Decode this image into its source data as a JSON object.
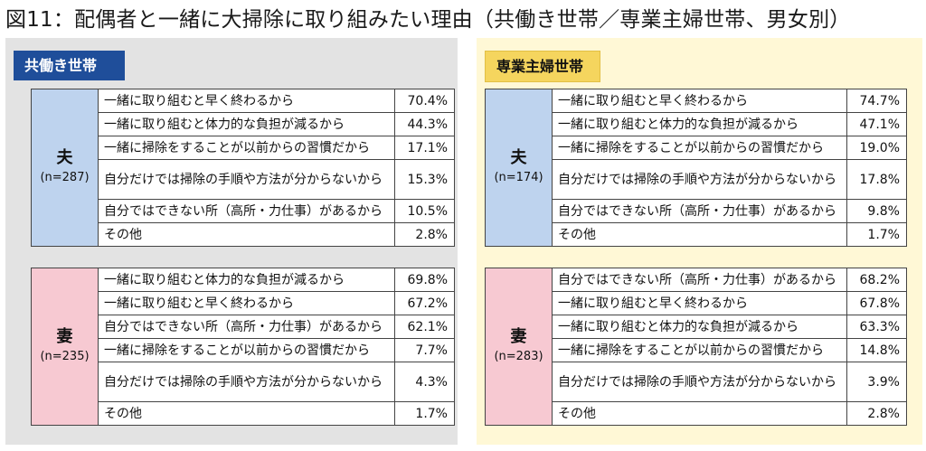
{
  "title": "図11：配偶者と一緒に大掃除に取り組みたい理由（共働き世帯／専業主婦世帯、男女別）",
  "colors": {
    "husband_cell": "#bed3ee",
    "wife_cell": "#f7c9d2",
    "left_header": "#1f4e9a",
    "right_header": "#f5d55e"
  },
  "panels": {
    "left": {
      "header": "共働き世帯",
      "husband": {
        "label": "夫",
        "n": "(n=287)",
        "rows": [
          {
            "reason": "一緒に取り組むと早く終わるから",
            "pct": "70.4%"
          },
          {
            "reason": "一緒に取り組むと体力的な負担が減るから",
            "pct": "44.3%"
          },
          {
            "reason": "一緒に掃除をすることが以前からの習慣だから",
            "pct": "17.1%"
          },
          {
            "reason": "自分だけでは掃除の手順や方法が分からないから",
            "pct": "15.3%"
          },
          {
            "reason": "自分ではできない所（高所・力仕事）があるから",
            "pct": "10.5%"
          },
          {
            "reason": "その他",
            "pct": "2.8%"
          }
        ]
      },
      "wife": {
        "label": "妻",
        "n": "(n=235)",
        "rows": [
          {
            "reason": "一緒に取り組むと体力的な負担が減るから",
            "pct": "69.8%"
          },
          {
            "reason": "一緒に取り組むと早く終わるから",
            "pct": "67.2%"
          },
          {
            "reason": "自分ではできない所（高所・力仕事）があるから",
            "pct": "62.1%"
          },
          {
            "reason": "一緒に掃除をすることが以前からの習慣だから",
            "pct": "7.7%"
          },
          {
            "reason": "自分だけでは掃除の手順や方法が分からないから",
            "pct": "4.3%"
          },
          {
            "reason": "その他",
            "pct": "1.7%"
          }
        ]
      }
    },
    "right": {
      "header": "専業主婦世帯",
      "husband": {
        "label": "夫",
        "n": "(n=174)",
        "rows": [
          {
            "reason": "一緒に取り組むと早く終わるから",
            "pct": "74.7%"
          },
          {
            "reason": "一緒に取り組むと体力的な負担が減るから",
            "pct": "47.1%"
          },
          {
            "reason": "一緒に掃除をすることが以前からの習慣だから",
            "pct": "19.0%"
          },
          {
            "reason": "自分だけでは掃除の手順や方法が分からないから",
            "pct": "17.8%"
          },
          {
            "reason": "自分ではできない所（高所・力仕事）があるから",
            "pct": "9.8%"
          },
          {
            "reason": "その他",
            "pct": "1.7%"
          }
        ]
      },
      "wife": {
        "label": "妻",
        "n": "(n=283)",
        "rows": [
          {
            "reason": "自分ではできない所（高所・力仕事）があるから",
            "pct": "68.2%"
          },
          {
            "reason": "一緒に取り組むと早く終わるから",
            "pct": "67.8%"
          },
          {
            "reason": "一緒に取り組むと体力的な負担が減るから",
            "pct": "63.3%"
          },
          {
            "reason": "一緒に掃除をすることが以前からの習慣だから",
            "pct": "14.8%"
          },
          {
            "reason": "自分だけでは掃除の手順や方法が分からないから",
            "pct": "3.9%"
          },
          {
            "reason": "その他",
            "pct": "2.8%"
          }
        ]
      }
    }
  }
}
